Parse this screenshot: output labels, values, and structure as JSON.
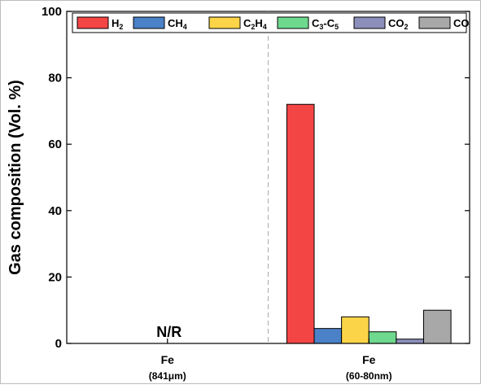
{
  "chart_data": {
    "type": "bar",
    "ylabel": "Gas composition (Vol. %)",
    "ylim": [
      0,
      100
    ],
    "yticks": [
      "0",
      "20",
      "40",
      "60",
      "80",
      "100"
    ],
    "categories": [
      {
        "name": "Fe",
        "detail": "(841μm)"
      },
      {
        "name": "Fe",
        "detail": "(60-80nm)"
      }
    ],
    "annotation": "N/R",
    "legend_position": "top",
    "series": [
      {
        "name": "H2",
        "label_parts": [
          [
            "H",
            ""
          ],
          [
            "2",
            "sub"
          ]
        ],
        "color": "#f44545",
        "values": [
          null,
          72
        ]
      },
      {
        "name": "CH4",
        "label_parts": [
          [
            "CH",
            ""
          ],
          [
            "4",
            "sub"
          ]
        ],
        "color": "#4a81c7",
        "values": [
          null,
          4.5
        ]
      },
      {
        "name": "C2H4",
        "label_parts": [
          [
            "C",
            ""
          ],
          [
            "2",
            "sub"
          ],
          [
            "H",
            ""
          ],
          [
            "4",
            "sub"
          ]
        ],
        "color": "#fbd448",
        "values": [
          null,
          8
        ]
      },
      {
        "name": "C3-C5",
        "label_parts": [
          [
            "C",
            ""
          ],
          [
            "3",
            "sub"
          ],
          [
            "-C",
            ""
          ],
          [
            "5",
            "sub"
          ]
        ],
        "color": "#6ed98e",
        "values": [
          null,
          3.5
        ]
      },
      {
        "name": "CO2",
        "label_parts": [
          [
            "CO",
            ""
          ],
          [
            "2",
            "sub"
          ]
        ],
        "color": "#8b8fba",
        "values": [
          null,
          1.3
        ]
      },
      {
        "name": "CO",
        "label_parts": [
          [
            "CO",
            ""
          ]
        ],
        "color": "#a8a8a8",
        "values": [
          null,
          10
        ]
      }
    ]
  }
}
